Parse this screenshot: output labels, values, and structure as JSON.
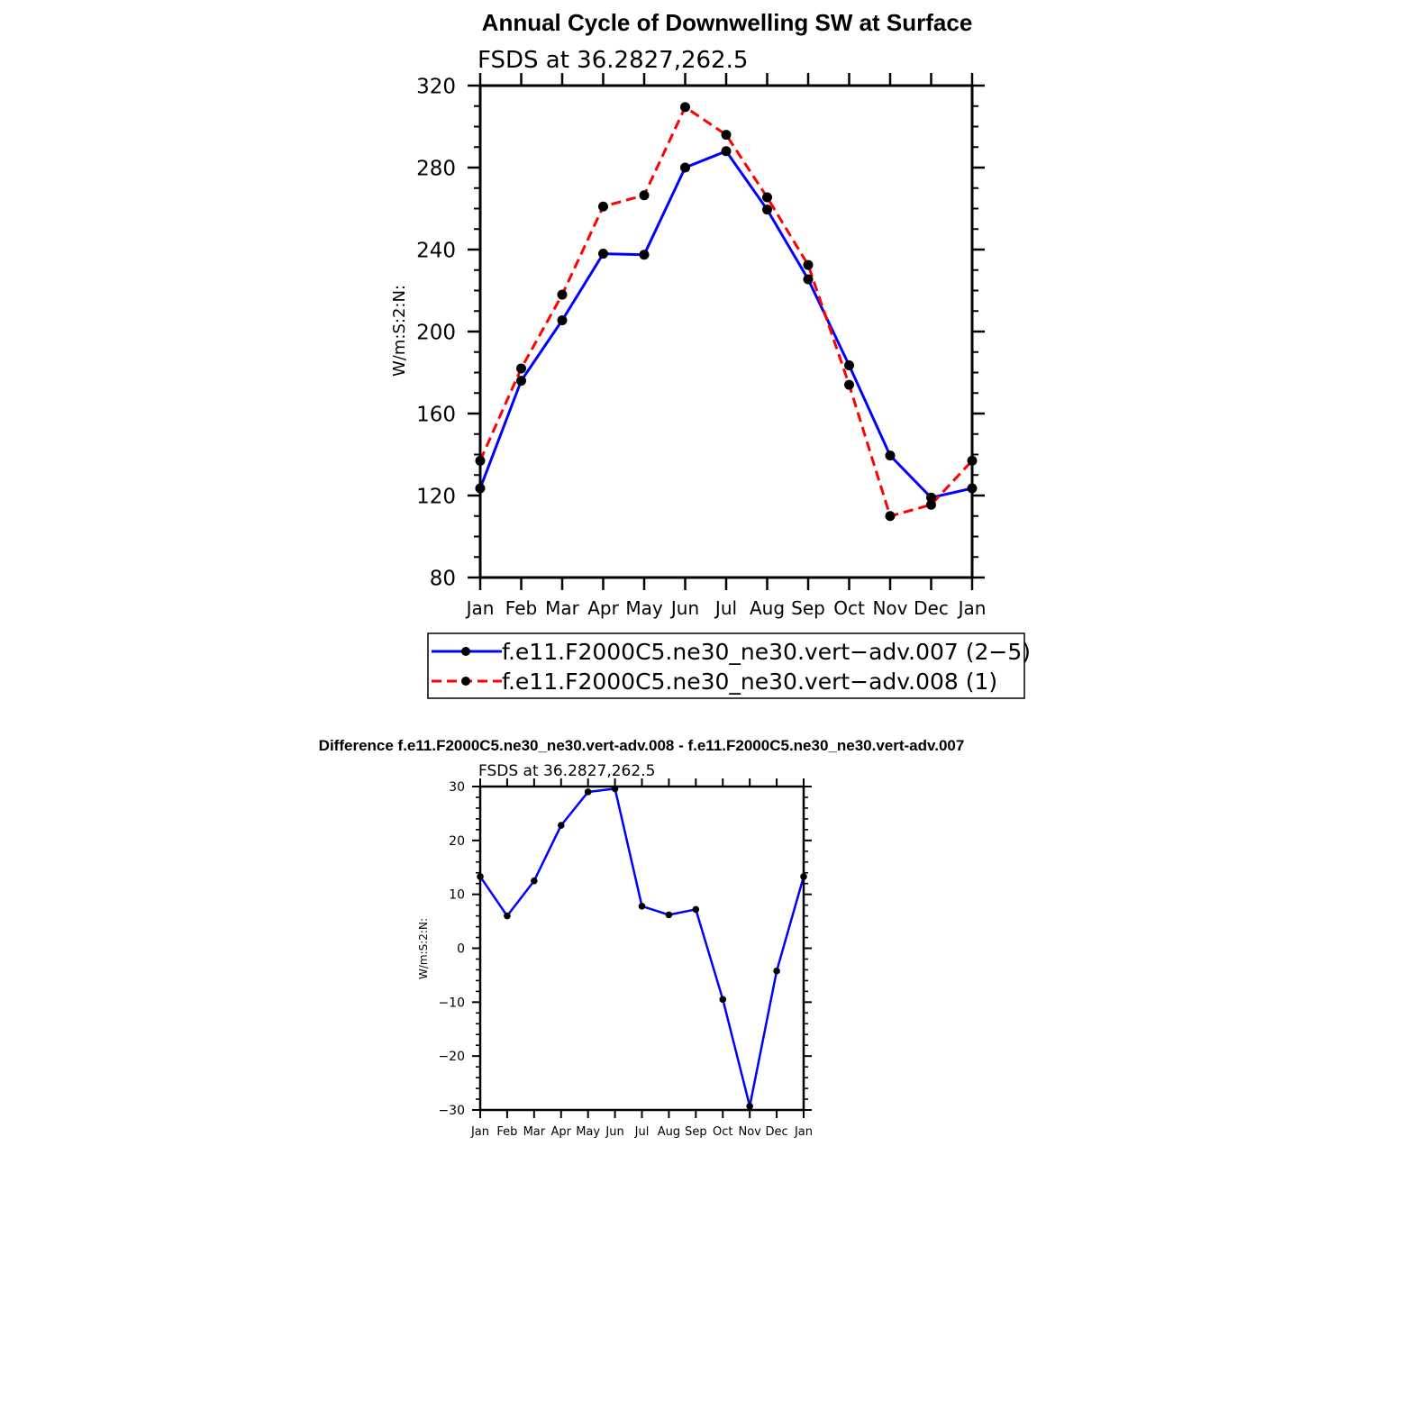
{
  "chart_data": [
    {
      "type": "line",
      "title": "Annual Cycle of Downwelling SW at Surface",
      "subtitle": "FSDS at 36.2827,262.5",
      "xlabel": "",
      "ylabel": "W/m:S:2:N:",
      "categories": [
        "Jan",
        "Feb",
        "Mar",
        "Apr",
        "May",
        "Jun",
        "Jul",
        "Aug",
        "Sep",
        "Oct",
        "Nov",
        "Dec",
        "Jan"
      ],
      "ylim": [
        80,
        320
      ],
      "yticks": [
        "80",
        "120",
        "160",
        "200",
        "240",
        "280",
        "320"
      ],
      "grid": false,
      "legend_position": "bottom",
      "series": [
        {
          "name": "f.e11.F2000C5.ne30_ne30.vert−adv.007 (2−5)",
          "color": "#0000ff",
          "dash": "solid",
          "values": [
            123.5,
            176,
            205.5,
            238,
            237.5,
            280,
            288,
            259.5,
            225.5,
            183.5,
            139.5,
            119,
            123.5
          ]
        },
        {
          "name": "f.e11.F2000C5.ne30_ne30.vert−adv.008 (1)",
          "color": "#ff0000",
          "dash": "dashed",
          "values": [
            137,
            182,
            218,
            261,
            266.5,
            309.5,
            296,
            265.5,
            232.5,
            174,
            110,
            115.5,
            137
          ]
        }
      ]
    },
    {
      "type": "line",
      "title": "Difference f.e11.F2000C5.ne30_ne30.vert-adv.008 - f.e11.F2000C5.ne30_ne30.vert-adv.007",
      "subtitle": "FSDS at 36.2827,262.5",
      "xlabel": "",
      "ylabel": "W/m:S:2:N:",
      "categories": [
        "Jan",
        "Feb",
        "Mar",
        "Apr",
        "May",
        "Jun",
        "Jul",
        "Aug",
        "Sep",
        "Oct",
        "Nov",
        "Dec",
        "Jan"
      ],
      "ylim": [
        -30,
        30
      ],
      "yticks": [
        "−30",
        "−20",
        "−10",
        "0",
        "10",
        "20",
        "30"
      ],
      "grid": false,
      "series": [
        {
          "color": "#0000ff",
          "dash": "solid",
          "values": [
            13.3,
            6,
            12.5,
            22.8,
            29,
            29.6,
            7.8,
            6.2,
            7.2,
            -9.5,
            -29.3,
            -4.2,
            13.3
          ]
        }
      ]
    }
  ]
}
